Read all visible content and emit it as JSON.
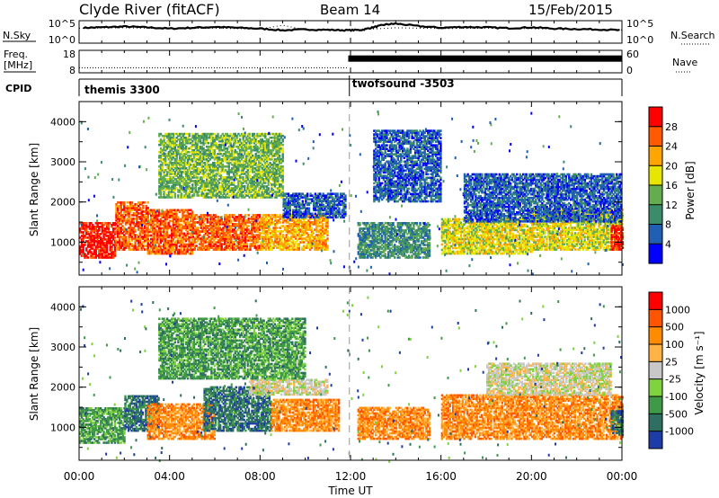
{
  "header": {
    "station": "Clyde River (fitACF)",
    "beam": "Beam 14",
    "date": "15/Feb/2015"
  },
  "chart_data": [
    {
      "type": "line",
      "panel": "noise",
      "left_label": "N.Sky",
      "right_label": "N.Search",
      "left_ticks": [
        "10^5",
        "10^0"
      ],
      "right_ticks": [
        "10^5",
        "10^0"
      ],
      "x_range_hours": [
        0,
        24
      ],
      "series": [
        {
          "name": "N.Sky",
          "style": "solid",
          "x": [
            0.2,
            1,
            2,
            3,
            4,
            5,
            6,
            7,
            8,
            9,
            10,
            11,
            11.9,
            12.5,
            13,
            13.5,
            14,
            15,
            16,
            17,
            18,
            19,
            20,
            21,
            22,
            23,
            24
          ],
          "values": [
            0.7,
            0.72,
            0.76,
            0.72,
            0.66,
            0.7,
            0.74,
            0.7,
            0.66,
            0.58,
            0.62,
            0.6,
            0.58,
            0.6,
            0.72,
            0.85,
            0.9,
            0.78,
            0.7,
            0.74,
            0.72,
            0.68,
            0.72,
            0.66,
            0.64,
            0.62,
            0.58
          ]
        },
        {
          "name": "N.Search",
          "style": "dotted",
          "x": [
            0,
            2,
            4,
            6,
            8,
            9,
            10,
            12,
            14,
            16,
            18,
            20,
            22,
            24
          ],
          "values": [
            0.68,
            0.7,
            0.66,
            0.68,
            0.64,
            0.82,
            0.6,
            0.58,
            0.7,
            0.66,
            0.68,
            0.66,
            0.62,
            0.6
          ]
        }
      ]
    },
    {
      "type": "line",
      "panel": "frequency",
      "left_label": "Freq.",
      "left_unit": "[MHz]",
      "right_label": "Nave",
      "left_ticks": [
        "18",
        "8"
      ],
      "right_ticks": [
        "60",
        "0"
      ],
      "series": [
        {
          "name": "Freq.",
          "style": "dotted",
          "x": [
            0,
            11.9
          ],
          "values": [
            10,
            10
          ]
        },
        {
          "name": "Nave",
          "style": "solid-dense",
          "x": [
            11.9,
            24
          ],
          "values": [
            40,
            40
          ]
        }
      ]
    },
    {
      "type": "table",
      "panel": "cpid",
      "label": "CPID",
      "segments": [
        {
          "start_hour": 0,
          "text": "themis 3300"
        },
        {
          "start_hour": 11.95,
          "text": "twofsound -3503"
        }
      ]
    },
    {
      "type": "heatmap",
      "panel": "power",
      "ylabel": "Slant Range [km]",
      "yticks": [
        "1000",
        "2000",
        "3000",
        "4000"
      ],
      "ylim": [
        180,
        4500
      ],
      "colorbar": {
        "label": "Power [dB]",
        "ticks": [
          "4",
          "8",
          "12",
          "16",
          "20",
          "24",
          "28"
        ],
        "colors": [
          "#0000ff",
          "#1f5fb4",
          "#3b8c6a",
          "#63ad4f",
          "#e6e600",
          "#ffa500",
          "#ff5a00",
          "#ff0000"
        ]
      },
      "bands": [
        {
          "t0": 0.0,
          "t1": 1.6,
          "r0": 600,
          "r1": 1500,
          "level": 7
        },
        {
          "t0": 1.6,
          "t1": 3.0,
          "r0": 800,
          "r1": 2000,
          "level": 6
        },
        {
          "t0": 3.0,
          "t1": 5.0,
          "r0": 700,
          "r1": 1800,
          "level": 6
        },
        {
          "t0": 5.0,
          "t1": 8.0,
          "r0": 800,
          "r1": 1700,
          "level": 6
        },
        {
          "t0": 8.0,
          "t1": 11.0,
          "r0": 800,
          "r1": 1700,
          "level": 5
        },
        {
          "t0": 3.5,
          "t1": 9.0,
          "r0": 2100,
          "r1": 3700,
          "level": 3
        },
        {
          "t0": 9.0,
          "t1": 11.8,
          "r0": 1600,
          "r1": 2200,
          "level": 1
        },
        {
          "t0": 12.3,
          "t1": 15.5,
          "r0": 600,
          "r1": 1500,
          "level": 2
        },
        {
          "t0": 13.0,
          "t1": 16.0,
          "r0": 2000,
          "r1": 3800,
          "level": 1
        },
        {
          "t0": 16.0,
          "t1": 20.0,
          "r0": 700,
          "r1": 1600,
          "level": 4
        },
        {
          "t0": 20.0,
          "t1": 24.0,
          "r0": 800,
          "r1": 1800,
          "level": 4
        },
        {
          "t0": 17.0,
          "t1": 24.0,
          "r0": 1500,
          "r1": 2700,
          "level": 1
        },
        {
          "t0": 23.5,
          "t1": 24.0,
          "r0": 800,
          "r1": 1400,
          "level": 7
        }
      ]
    },
    {
      "type": "heatmap",
      "panel": "velocity",
      "ylabel": "Slant Range [km]",
      "yticks": [
        "1000",
        "2000",
        "3000",
        "4000"
      ],
      "ylim": [
        180,
        4500
      ],
      "colorbar": {
        "label": "Velocity [m s⁻¹]",
        "ticks": [
          "1000",
          "500",
          "100",
          "25",
          "-25",
          "-100",
          "-500",
          "-1000"
        ],
        "colors": [
          "#1e3ca8",
          "#2f6f62",
          "#3f9a48",
          "#7fd33e",
          "#c8c8c8",
          "#ffb347",
          "#ff8c00",
          "#ff5500",
          "#ff0000"
        ]
      },
      "bands": [
        {
          "t0": 0.0,
          "t1": 2.0,
          "r0": 600,
          "r1": 1500,
          "level": 2
        },
        {
          "t0": 2.0,
          "t1": 3.5,
          "r0": 900,
          "r1": 1800,
          "level": 1
        },
        {
          "t0": 3.0,
          "t1": 6.0,
          "r0": 700,
          "r1": 1600,
          "level": 6
        },
        {
          "t0": 5.5,
          "t1": 8.5,
          "r0": 900,
          "r1": 2000,
          "level": 1
        },
        {
          "t0": 8.5,
          "t1": 11.5,
          "r0": 900,
          "r1": 1700,
          "level": 6
        },
        {
          "t0": 7.5,
          "t1": 11.0,
          "r0": 1800,
          "r1": 2200,
          "level": 4
        },
        {
          "t0": 3.5,
          "t1": 10.0,
          "r0": 2200,
          "r1": 3700,
          "level": 2
        },
        {
          "t0": 12.3,
          "t1": 15.5,
          "r0": 700,
          "r1": 1500,
          "level": 6
        },
        {
          "t0": 16.0,
          "t1": 24.0,
          "r0": 700,
          "r1": 1800,
          "level": 6
        },
        {
          "t0": 18.0,
          "t1": 23.5,
          "r0": 1800,
          "r1": 2600,
          "level": 4
        },
        {
          "t0": 23.5,
          "t1": 24.0,
          "r0": 800,
          "r1": 1400,
          "level": 1
        }
      ]
    }
  ],
  "x_axis": {
    "label": "Time UT",
    "ticks": [
      "00:00",
      "04:00",
      "08:00",
      "12:00",
      "16:00",
      "20:00",
      "00:00"
    ],
    "tick_hours": [
      0,
      4,
      8,
      12,
      16,
      20,
      24
    ]
  }
}
